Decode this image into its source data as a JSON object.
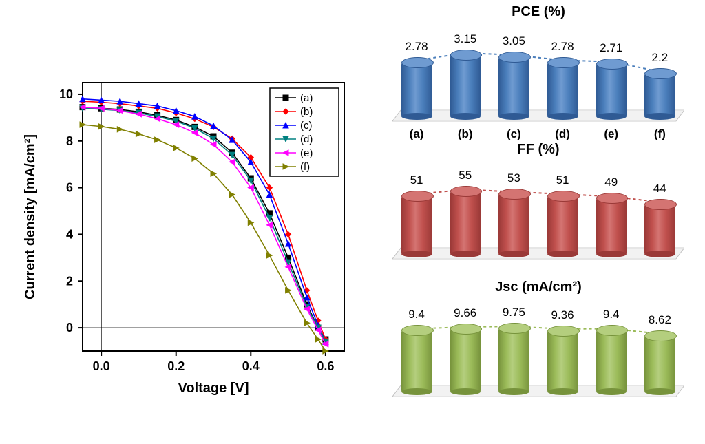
{
  "jv_chart": {
    "type": "line",
    "xlabel": "Voltage [V]",
    "ylabel": "Current density [mA/cm²]",
    "xlabel_fontsize": 20,
    "ylabel_fontsize": 20,
    "tick_fontsize": 18,
    "xlim": [
      -0.05,
      0.65
    ],
    "ylim": [
      -1,
      10.5
    ],
    "xticks": [
      0.0,
      0.2,
      0.4,
      0.6
    ],
    "yticks": [
      0,
      2,
      4,
      6,
      8,
      10
    ],
    "background_color": "#ffffff",
    "axis_color": "#000000",
    "legend_border": "#000000",
    "series": [
      {
        "name": "(a)",
        "color": "#000000",
        "marker": "square",
        "x": [
          -0.05,
          0.0,
          0.05,
          0.1,
          0.15,
          0.2,
          0.25,
          0.3,
          0.35,
          0.4,
          0.45,
          0.5,
          0.55,
          0.58,
          0.6
        ],
        "y": [
          9.45,
          9.4,
          9.35,
          9.25,
          9.1,
          8.9,
          8.6,
          8.2,
          7.5,
          6.4,
          4.9,
          3.0,
          1.0,
          0.0,
          -0.5
        ]
      },
      {
        "name": "(b)",
        "color": "#ff0000",
        "marker": "diamond",
        "x": [
          -0.05,
          0.0,
          0.05,
          0.1,
          0.15,
          0.2,
          0.25,
          0.3,
          0.35,
          0.4,
          0.45,
          0.5,
          0.55,
          0.58,
          0.6
        ],
        "y": [
          9.7,
          9.66,
          9.6,
          9.5,
          9.4,
          9.2,
          8.95,
          8.6,
          8.1,
          7.3,
          6.0,
          4.0,
          1.6,
          0.3,
          -0.5
        ]
      },
      {
        "name": "(c)",
        "color": "#0000ff",
        "marker": "triangle-up",
        "x": [
          -0.05,
          0.0,
          0.05,
          0.1,
          0.15,
          0.2,
          0.25,
          0.3,
          0.35,
          0.4,
          0.45,
          0.5,
          0.55,
          0.58,
          0.6
        ],
        "y": [
          9.8,
          9.75,
          9.7,
          9.6,
          9.5,
          9.3,
          9.05,
          8.65,
          8.05,
          7.1,
          5.7,
          3.6,
          1.3,
          0.1,
          -0.6
        ]
      },
      {
        "name": "(d)",
        "color": "#008080",
        "marker": "triangle-down",
        "x": [
          -0.05,
          0.0,
          0.05,
          0.1,
          0.15,
          0.2,
          0.25,
          0.3,
          0.35,
          0.4,
          0.45,
          0.5,
          0.55,
          0.58,
          0.6
        ],
        "y": [
          9.4,
          9.36,
          9.3,
          9.2,
          9.05,
          8.85,
          8.55,
          8.1,
          7.4,
          6.3,
          4.7,
          2.8,
          0.9,
          0.0,
          -0.6
        ]
      },
      {
        "name": "(e)",
        "color": "#ff00ff",
        "marker": "triangle-left",
        "x": [
          -0.05,
          0.0,
          0.05,
          0.1,
          0.15,
          0.2,
          0.25,
          0.3,
          0.35,
          0.4,
          0.45,
          0.5,
          0.55,
          0.58,
          0.6
        ],
        "y": [
          9.45,
          9.4,
          9.3,
          9.15,
          8.95,
          8.7,
          8.35,
          7.85,
          7.1,
          6.0,
          4.4,
          2.6,
          0.8,
          -0.1,
          -0.7
        ]
      },
      {
        "name": "(f)",
        "color": "#808000",
        "marker": "triangle-right",
        "x": [
          -0.05,
          0.0,
          0.05,
          0.1,
          0.15,
          0.2,
          0.25,
          0.3,
          0.35,
          0.4,
          0.45,
          0.5,
          0.55,
          0.58,
          0.6
        ],
        "y": [
          8.7,
          8.62,
          8.5,
          8.3,
          8.05,
          7.7,
          7.25,
          6.6,
          5.7,
          4.5,
          3.1,
          1.6,
          0.2,
          -0.5,
          -1.0
        ]
      }
    ]
  },
  "bar_charts": {
    "categories": [
      "(a)",
      "(b)",
      "(c)",
      "(d)",
      "(e)",
      "(f)"
    ],
    "base_fill": "#f2f2f2",
    "base_stroke": "#bfbfbf",
    "charts": [
      {
        "title": "PCE (%)",
        "values": [
          2.78,
          3.15,
          3.05,
          2.78,
          2.71,
          2.2
        ],
        "ymax": 3.5,
        "bar_color": "#4a7ebb",
        "bar_highlight": "#6f9bd1",
        "bar_shadow": "#2f5a94",
        "trend_color": "#4a7ebb",
        "show_categories": true
      },
      {
        "title": "FF (%)",
        "values": [
          51,
          55,
          53,
          51,
          49,
          44
        ],
        "ymax": 60,
        "bar_color": "#c0504d",
        "bar_highlight": "#d47472",
        "bar_shadow": "#9a3937",
        "trend_color": "#c0504d",
        "show_categories": false
      },
      {
        "title": "Jsc (mA/cm²)",
        "values": [
          9.4,
          9.66,
          9.75,
          9.36,
          9.4,
          8.62
        ],
        "ymax": 10.5,
        "bar_color": "#9bbb59",
        "bar_highlight": "#b4ce7e",
        "bar_shadow": "#77933c",
        "trend_color": "#9bbb59",
        "show_categories": false
      }
    ]
  }
}
